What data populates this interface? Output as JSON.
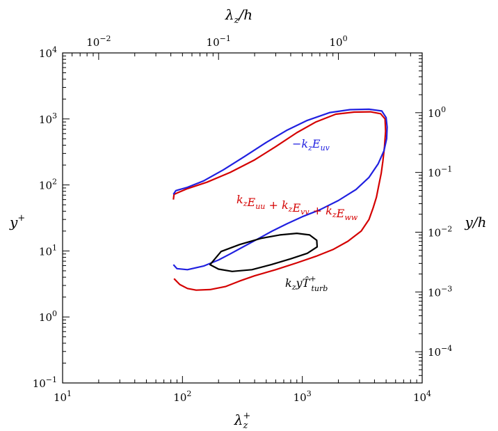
{
  "chart_data": {
    "type": "line",
    "title": "",
    "xscale": "log",
    "yscale": "log",
    "xlim": [
      10,
      10000
    ],
    "ylim": [
      0.1,
      10000
    ],
    "grid": false,
    "axes": {
      "bottom": {
        "title": "λ",
        "title_sub": "z",
        "title_sup": "+",
        "ticks": [
          {
            "value": 10,
            "base": "10",
            "exp": "1"
          },
          {
            "value": 100,
            "base": "10",
            "exp": "2"
          },
          {
            "value": 1000,
            "base": "10",
            "exp": "3"
          },
          {
            "value": 10000,
            "base": "10",
            "exp": "4"
          }
        ]
      },
      "left": {
        "title": "y",
        "title_sup": "+",
        "ticks": [
          {
            "value": 0.1,
            "base": "10",
            "exp": "−1"
          },
          {
            "value": 1,
            "base": "10",
            "exp": "0"
          },
          {
            "value": 10,
            "base": "10",
            "exp": "1"
          },
          {
            "value": 100,
            "base": "10",
            "exp": "2"
          },
          {
            "value": 1000,
            "base": "10",
            "exp": "3"
          },
          {
            "value": 10000,
            "base": "10",
            "exp": "4"
          }
        ]
      },
      "top": {
        "title": "λ",
        "title_sub": "z",
        "title_tail": "/h",
        "xlim": [
          0.005,
          5
        ],
        "ticks": [
          {
            "value": 0.01,
            "base": "10",
            "exp": "−2"
          },
          {
            "value": 0.1,
            "base": "10",
            "exp": "−1"
          },
          {
            "value": 1,
            "base": "10",
            "exp": "0"
          }
        ]
      },
      "right": {
        "title": "y/h",
        "ylim": [
          3e-05,
          10
        ],
        "ticks": [
          {
            "value": 0.0001,
            "base": "10",
            "exp": "−4"
          },
          {
            "value": 0.001,
            "base": "10",
            "exp": "−3"
          },
          {
            "value": 0.01,
            "base": "10",
            "exp": "−2"
          },
          {
            "value": 0.1,
            "base": "10",
            "exp": "−1"
          },
          {
            "value": 1,
            "base": "10",
            "exp": "0"
          }
        ]
      }
    },
    "series": [
      {
        "color": "#d40000",
        "label": "kzEuu + kzEvv + kzEww",
        "points": [
          [
            85,
            3.8
          ],
          [
            95,
            3.1
          ],
          [
            110,
            2.7
          ],
          [
            130,
            2.55
          ],
          [
            170,
            2.6
          ],
          [
            230,
            2.9
          ],
          [
            300,
            3.5
          ],
          [
            400,
            4.2
          ],
          [
            600,
            5.2
          ],
          [
            900,
            6.6
          ],
          [
            1300,
            8.3
          ],
          [
            1800,
            10.5
          ],
          [
            2400,
            14
          ],
          [
            3100,
            20
          ],
          [
            3600,
            30
          ],
          [
            3900,
            45
          ],
          [
            4150,
            65
          ],
          [
            4350,
            100
          ],
          [
            4550,
            150
          ],
          [
            4700,
            230
          ],
          [
            4850,
            380
          ],
          [
            4950,
            650
          ],
          [
            4900,
            1000
          ],
          [
            4500,
            1200
          ],
          [
            3700,
            1280
          ],
          [
            2700,
            1270
          ],
          [
            1900,
            1180
          ],
          [
            1300,
            900
          ],
          [
            900,
            620
          ],
          [
            600,
            380
          ],
          [
            400,
            240
          ],
          [
            250,
            155
          ],
          [
            160,
            110
          ],
          [
            110,
            88
          ],
          [
            85,
            72
          ],
          [
            84,
            60
          ]
        ]
      },
      {
        "color": "#2020e0",
        "label": "−kzEuv",
        "points": [
          [
            84,
            6.2
          ],
          [
            90,
            5.4
          ],
          [
            110,
            5.2
          ],
          [
            150,
            5.9
          ],
          [
            200,
            7.3
          ],
          [
            250,
            9
          ],
          [
            320,
            11.5
          ],
          [
            420,
            15
          ],
          [
            560,
            20
          ],
          [
            750,
            26
          ],
          [
            1000,
            33
          ],
          [
            1400,
            42
          ],
          [
            2000,
            58
          ],
          [
            2800,
            85
          ],
          [
            3600,
            130
          ],
          [
            4300,
            210
          ],
          [
            4800,
            330
          ],
          [
            5050,
            500
          ],
          [
            5100,
            750
          ],
          [
            5000,
            1050
          ],
          [
            4600,
            1320
          ],
          [
            3600,
            1400
          ],
          [
            2500,
            1380
          ],
          [
            1700,
            1250
          ],
          [
            1100,
            950
          ],
          [
            750,
            680
          ],
          [
            500,
            440
          ],
          [
            330,
            270
          ],
          [
            220,
            170
          ],
          [
            150,
            115
          ],
          [
            110,
            92
          ],
          [
            88,
            82
          ],
          [
            84,
            72
          ]
        ]
      },
      {
        "color": "#000000",
        "label": "kzyT̂+turb",
        "closed": true,
        "points": [
          [
            170,
            6.2
          ],
          [
            210,
            9.8
          ],
          [
            300,
            12.5
          ],
          [
            450,
            15.5
          ],
          [
            650,
            17.5
          ],
          [
            900,
            18.5
          ],
          [
            1150,
            17.5
          ],
          [
            1320,
            14.5
          ],
          [
            1330,
            11.5
          ],
          [
            1100,
            9.2
          ],
          [
            800,
            7.6
          ],
          [
            550,
            6.2
          ],
          [
            380,
            5.2
          ],
          [
            260,
            4.9
          ],
          [
            200,
            5.3
          ]
        ]
      }
    ]
  }
}
